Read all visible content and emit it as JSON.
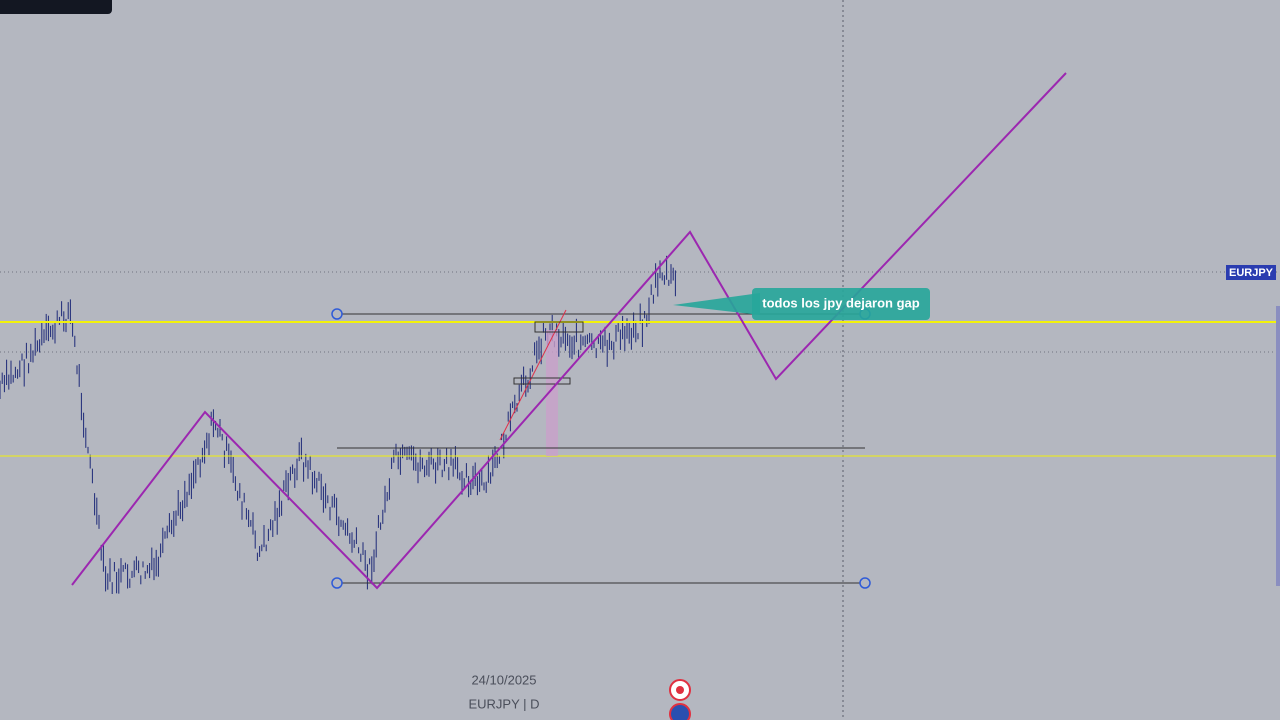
{
  "chart": {
    "symbol_tag": "EURJPY",
    "annotation": "todos los jpy dejaron gap",
    "date_label": "24/10/2025",
    "symbol_interval": "EURJPY | D"
  }
}
